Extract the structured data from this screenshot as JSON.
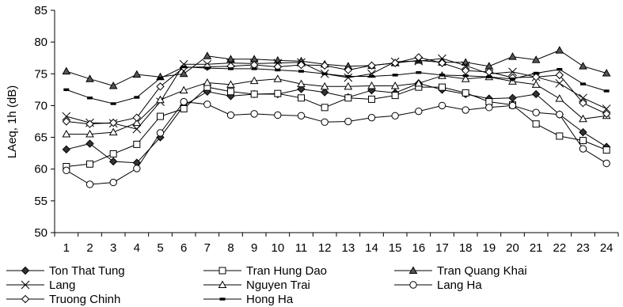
{
  "chart_data": {
    "type": "line",
    "title": "",
    "xlabel": "",
    "ylabel": "LAeq, 1h (dB)",
    "ylim": [
      50,
      85
    ],
    "yticks": [
      50,
      55,
      60,
      65,
      70,
      75,
      80,
      85
    ],
    "x": [
      1,
      2,
      3,
      4,
      5,
      6,
      7,
      8,
      9,
      10,
      11,
      12,
      13,
      14,
      15,
      16,
      17,
      18,
      19,
      20,
      21,
      22,
      23,
      24
    ],
    "grid": false,
    "legend_placement": "bottom",
    "series": [
      {
        "name": "Ton That Tung",
        "marker": "diamond-filled",
        "color": "#000000",
        "values": [
          63.1,
          64.0,
          61.2,
          61.0,
          65.0,
          70.0,
          72.2,
          71.5,
          71.8,
          71.8,
          72.6,
          72.1,
          71.3,
          72.4,
          72.0,
          73.5,
          72.5,
          71.8,
          71.1,
          71.2,
          71.8,
          68.6,
          65.8,
          63.5
        ]
      },
      {
        "name": "Tran Hung Dao",
        "marker": "square-open",
        "color": "#000000",
        "values": [
          60.4,
          60.8,
          62.4,
          63.9,
          68.3,
          69.5,
          72.9,
          72.2,
          71.8,
          71.9,
          71.2,
          69.7,
          71.2,
          71.0,
          71.6,
          72.9,
          72.9,
          72.0,
          70.6,
          70.1,
          67.1,
          65.2,
          64.5,
          63.0
        ]
      },
      {
        "name": "Tran Quang Khai",
        "marker": "triangle-filled",
        "color": "#000000",
        "values": [
          75.4,
          74.2,
          73.1,
          74.9,
          74.5,
          75.0,
          77.8,
          77.3,
          77.3,
          77.1,
          77.0,
          76.5,
          76.2,
          76.3,
          76.7,
          77.1,
          76.8,
          76.8,
          76.2,
          77.7,
          77.2,
          78.7,
          76.2,
          75.1
        ]
      },
      {
        "name": "Lang",
        "marker": "x",
        "color": "#000000",
        "values": [
          68.3,
          67.3,
          67.2,
          66.3,
          70.6,
          76.5,
          76.5,
          76.7,
          76.6,
          76.7,
          76.8,
          75.0,
          74.4,
          75.0,
          76.9,
          77.0,
          77.4,
          76.3,
          75.0,
          75.3,
          74.5,
          73.5,
          71.2,
          69.5
        ]
      },
      {
        "name": "Nguyen Trai",
        "marker": "triangle-open",
        "color": "#000000",
        "values": [
          65.5,
          65.5,
          65.8,
          67.3,
          70.9,
          72.4,
          73.6,
          73.3,
          73.9,
          74.2,
          73.4,
          73.0,
          73.0,
          73.1,
          73.1,
          73.5,
          74.7,
          74.2,
          74.5,
          73.8,
          73.3,
          71.1,
          67.9,
          68.4
        ]
      },
      {
        "name": "Lang Ha",
        "marker": "circle-open",
        "color": "#000000",
        "values": [
          59.8,
          57.6,
          57.9,
          60.1,
          65.7,
          70.6,
          70.2,
          68.5,
          68.7,
          68.5,
          68.4,
          67.4,
          67.5,
          68.1,
          68.4,
          69.1,
          70.0,
          69.3,
          69.7,
          70.0,
          68.9,
          68.6,
          63.2,
          60.9
        ]
      },
      {
        "name": "Truong Chinh",
        "marker": "diamond-open",
        "color": "#000000",
        "values": [
          67.5,
          67.1,
          67.3,
          68.1,
          73.0,
          76.0,
          76.1,
          76.2,
          76.4,
          76.1,
          76.4,
          76.3,
          75.6,
          76.3,
          76.7,
          77.6,
          76.7,
          75.5,
          75.3,
          74.4,
          74.5,
          74.8,
          70.4,
          68.7
        ]
      },
      {
        "name": "Hong Ha",
        "marker": "dash",
        "color": "#000000",
        "values": [
          72.5,
          71.2,
          70.3,
          71.3,
          74.3,
          76.1,
          75.9,
          75.8,
          75.8,
          75.6,
          75.4,
          75.0,
          74.6,
          74.6,
          74.8,
          75.2,
          74.8,
          74.7,
          74.5,
          74.2,
          75.1,
          75.7,
          73.4,
          72.3
        ]
      }
    ]
  }
}
